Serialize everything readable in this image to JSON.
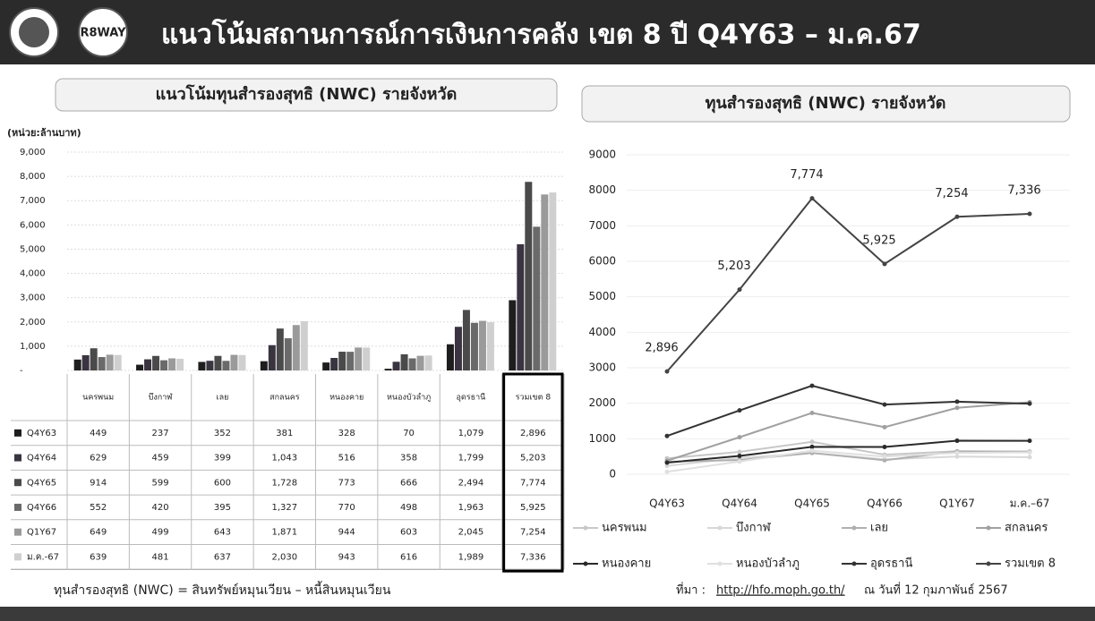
{
  "header": {
    "title": "แนวโน้มสถานการณ์การเงินการคลัง เขต 8 ปี Q4Y63 – ม.ค.67",
    "logo_text": "R8WAY"
  },
  "chart_data": [
    {
      "type": "bar",
      "title": "แนวโน้มทุนสำรองสุทธิ (NWC) รายจังหวัด",
      "y_label": "(หน่วย:ล้านบาท)",
      "categories": [
        "นครพนม",
        "บึงกาฬ",
        "เลย",
        "สกลนคร",
        "หนองคาย",
        "หนองบัวลำภู",
        "อุดรธานี",
        "รวมเขต 8"
      ],
      "series": [
        {
          "name": "Q4Y63",
          "color": "#1e1e1e",
          "values": [
            449,
            237,
            352,
            381,
            328,
            70,
            1079,
            2896
          ],
          "value_labels": [
            "449",
            "237",
            "352",
            "381",
            "328",
            "70",
            "1,079",
            "2,896"
          ]
        },
        {
          "name": "Q4Y64",
          "color": "#3a3340",
          "values": [
            629,
            459,
            399,
            1043,
            516,
            358,
            1799,
            5203
          ],
          "value_labels": [
            "629",
            "459",
            "399",
            "1,043",
            "516",
            "358",
            "1,799",
            "5,203"
          ]
        },
        {
          "name": "Q4Y65",
          "color": "#4a4a4a",
          "values": [
            914,
            599,
            600,
            1728,
            773,
            666,
            2494,
            7774
          ],
          "value_labels": [
            "914",
            "599",
            "600",
            "1,728",
            "773",
            "666",
            "2,494",
            "7,774"
          ]
        },
        {
          "name": "Q4Y66",
          "color": "#6a6a6a",
          "values": [
            552,
            420,
            395,
            1327,
            770,
            498,
            1963,
            5925
          ],
          "value_labels": [
            "552",
            "420",
            "395",
            "1,327",
            "770",
            "498",
            "1,963",
            "5,925"
          ]
        },
        {
          "name": "Q1Y67",
          "color": "#9a9a9a",
          "values": [
            649,
            499,
            643,
            1871,
            944,
            603,
            2045,
            7254
          ],
          "value_labels": [
            "649",
            "499",
            "643",
            "1,871",
            "944",
            "603",
            "2,045",
            "7,254"
          ]
        },
        {
          "name": "ม.ค.-67",
          "color": "#cfcfcf",
          "values": [
            639,
            481,
            637,
            2030,
            943,
            616,
            1989,
            7336
          ],
          "value_labels": [
            "639",
            "481",
            "637",
            "2,030",
            "943",
            "616",
            "1,989",
            "7,336"
          ]
        }
      ],
      "ylim": [
        0,
        9000
      ],
      "yticks": [
        {
          "value": 0,
          "label": "-"
        },
        {
          "value": 1000,
          "label": "1,000"
        },
        {
          "value": 2000,
          "label": "2,000"
        },
        {
          "value": 3000,
          "label": "3,000"
        },
        {
          "value": 4000,
          "label": "4,000"
        },
        {
          "value": 5000,
          "label": "5,000"
        },
        {
          "value": 6000,
          "label": "6,000"
        },
        {
          "value": 7000,
          "label": "7,000"
        },
        {
          "value": 8000,
          "label": "8,000"
        },
        {
          "value": 9000,
          "label": "9,000"
        }
      ],
      "grid": true,
      "footnote": "ทุนสำรองสุทธิ (NWC) = สินทรัพย์หมุนเวียน – หนี้สินหมุนเวียน"
    },
    {
      "type": "line",
      "title": "ทุนสำรองสุทธิ (NWC) รายจังหวัด",
      "categories": [
        "Q4Y63",
        "Q4Y64",
        "Q4Y65",
        "Q4Y66",
        "Q1Y67",
        "ม.ค.–67"
      ],
      "series": [
        {
          "name": "นครพนม",
          "color": "#c8c8c8",
          "values": [
            449,
            629,
            914,
            552,
            649,
            639
          ]
        },
        {
          "name": "บึงกาฬ",
          "color": "#d8d8d8",
          "values": [
            237,
            459,
            599,
            420,
            499,
            481
          ]
        },
        {
          "name": "เลย",
          "color": "#b0b0b0",
          "values": [
            352,
            399,
            600,
            395,
            643,
            637
          ]
        },
        {
          "name": "สกลนคร",
          "color": "#a0a0a0",
          "values": [
            381,
            1043,
            1728,
            1327,
            1871,
            2030
          ]
        },
        {
          "name": "หนองคาย",
          "color": "#2a2a2a",
          "values": [
            328,
            516,
            773,
            770,
            944,
            943
          ]
        },
        {
          "name": "หนองบัวลำภู",
          "color": "#e0e0e0",
          "values": [
            70,
            358,
            666,
            498,
            603,
            616
          ]
        },
        {
          "name": "อุดรธานี",
          "color": "#333333",
          "values": [
            1079,
            1799,
            2494,
            1963,
            2045,
            1989
          ]
        },
        {
          "name": "รวมเขต 8",
          "color": "#444444",
          "values": [
            2896,
            5203,
            7774,
            5925,
            7254,
            7336
          ],
          "value_labels": [
            "2,896",
            "5,203",
            "7,774",
            "5,925",
            "7,254",
            "7,336"
          ]
        }
      ],
      "ylim": [
        0,
        9000
      ],
      "yticks": [
        0,
        1000,
        2000,
        3000,
        4000,
        5000,
        6000,
        7000,
        8000,
        9000
      ],
      "grid": true,
      "source": {
        "prefix": "ที่มา :",
        "link": "http://hfo.moph.go.th/",
        "date": "ณ วันที่ 12 กุมภาพันธ์ 2567"
      }
    }
  ]
}
